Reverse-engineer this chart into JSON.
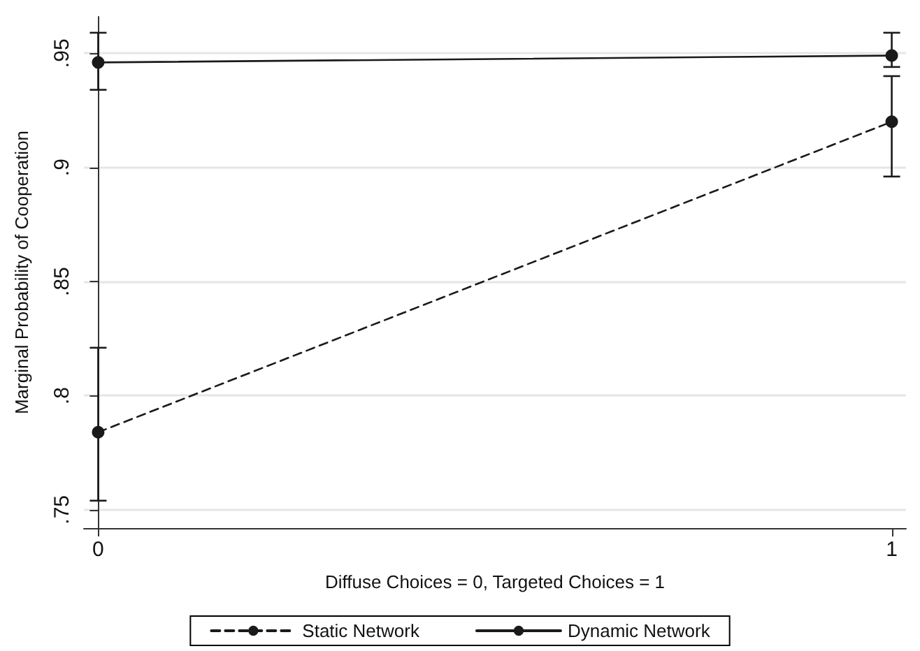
{
  "chart_data": {
    "type": "line",
    "xlabel": "Diffuse Choices = 0, Targeted Choices = 1",
    "ylabel": "Marginal Probability of Cooperation",
    "x": [
      0,
      1
    ],
    "xlim": [
      -0.018,
      1.018
    ],
    "xticks": [
      0,
      1
    ],
    "ylim": [
      0.742,
      0.966
    ],
    "yticks": [
      {
        "value": 0.75,
        "label": ".75"
      },
      {
        "value": 0.8,
        "label": ".8"
      },
      {
        "value": 0.85,
        "label": ".85"
      },
      {
        "value": 0.9,
        "label": ".9"
      },
      {
        "value": 0.95,
        "label": ".95"
      }
    ],
    "grid": "y",
    "legend": "bottom",
    "marker": "circle",
    "series": [
      {
        "name": "Static Network",
        "color": "#1a1a1a",
        "line_style": "dashed",
        "values": [
          0.784,
          0.92
        ],
        "errors": [
          [
            0.754,
            0.821
          ],
          [
            0.896,
            0.94
          ]
        ]
      },
      {
        "name": "Dynamic Network",
        "color": "#1a1a1a",
        "line_style": "solid",
        "values": [
          0.946,
          0.949
        ],
        "errors": [
          [
            0.934,
            0.959
          ],
          [
            0.944,
            0.959
          ]
        ]
      }
    ]
  }
}
